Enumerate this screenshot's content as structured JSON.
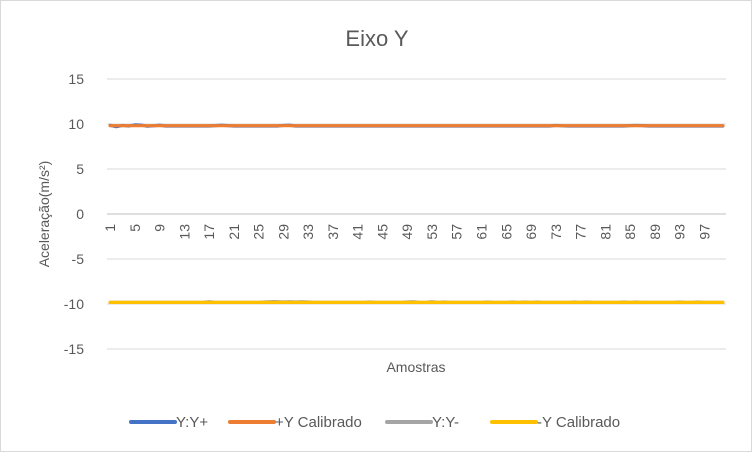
{
  "chart_data": {
    "type": "line",
    "title": "Eixo Y",
    "xlabel": "Amostras",
    "ylabel": "Aceleração(m/s²)",
    "ylim": [
      -15,
      15
    ],
    "yticks": [
      15,
      10,
      5,
      0,
      -5,
      -10,
      -15
    ],
    "x_tick_labels": [
      "1",
      "5",
      "9",
      "13",
      "17",
      "21",
      "25",
      "29",
      "33",
      "37",
      "41",
      "45",
      "49",
      "53",
      "57",
      "61",
      "65",
      "69",
      "73",
      "77",
      "81",
      "85",
      "89",
      "93",
      "97"
    ],
    "grid": true,
    "legend_position": "bottom",
    "series": [
      {
        "name": "Y:Y+",
        "color": "#4472c4",
        "base": 9.78,
        "values": [
          9.85,
          9.7,
          9.84,
          9.78,
          9.9,
          9.88,
          9.76,
          9.8,
          9.86,
          9.78,
          9.78,
          9.78,
          9.78,
          9.78,
          9.78,
          9.78,
          9.78,
          9.82,
          9.86,
          9.82,
          9.78,
          9.78,
          9.78,
          9.78,
          9.78,
          9.78,
          9.78,
          9.78,
          9.84,
          9.86,
          9.78,
          9.78,
          9.78,
          9.78,
          9.78,
          9.78,
          9.78,
          9.78,
          9.78,
          9.78,
          9.78,
          9.78,
          9.78,
          9.78,
          9.78,
          9.78,
          9.78,
          9.78,
          9.78,
          9.78,
          9.78,
          9.78,
          9.78,
          9.78,
          9.78,
          9.78,
          9.78,
          9.78,
          9.78,
          9.78,
          9.78,
          9.78,
          9.78,
          9.78,
          9.78,
          9.78,
          9.78,
          9.78,
          9.78,
          9.78,
          9.78,
          9.78,
          9.84,
          9.8,
          9.78,
          9.78,
          9.78,
          9.78,
          9.78,
          9.78,
          9.78,
          9.78,
          9.78,
          9.78,
          9.82,
          9.84,
          9.82,
          9.78,
          9.78,
          9.78,
          9.78,
          9.78,
          9.78,
          9.78,
          9.78,
          9.78,
          9.78,
          9.78,
          9.78,
          9.78
        ]
      },
      {
        "name": "+Y Calibrado",
        "color": "#ed7d31",
        "base": 9.81,
        "values": []
      },
      {
        "name": "Y:Y-",
        "color": "#a5a5a5",
        "base": -9.82,
        "values": [
          -9.82,
          -9.82,
          -9.82,
          -9.82,
          -9.82,
          -9.82,
          -9.82,
          -9.82,
          -9.82,
          -9.82,
          -9.82,
          -9.82,
          -9.82,
          -9.82,
          -9.82,
          -9.82,
          -9.74,
          -9.82,
          -9.82,
          -9.82,
          -9.82,
          -9.82,
          -9.82,
          -9.82,
          -9.82,
          -9.78,
          -9.74,
          -9.74,
          -9.78,
          -9.74,
          -9.78,
          -9.74,
          -9.78,
          -9.82,
          -9.82,
          -9.82,
          -9.82,
          -9.82,
          -9.82,
          -9.82,
          -9.82,
          -9.82,
          -9.78,
          -9.82,
          -9.82,
          -9.82,
          -9.82,
          -9.82,
          -9.78,
          -9.74,
          -9.82,
          -9.82,
          -9.74,
          -9.82,
          -9.78,
          -9.82,
          -9.82,
          -9.82,
          -9.82,
          -9.82,
          -9.82,
          -9.78,
          -9.82,
          -9.82,
          -9.82,
          -9.78,
          -9.82,
          -9.78,
          -9.82,
          -9.78,
          -9.82,
          -9.82,
          -9.82,
          -9.82,
          -9.82,
          -9.78,
          -9.82,
          -9.78,
          -9.82,
          -9.82,
          -9.82,
          -9.82,
          -9.82,
          -9.78,
          -9.82,
          -9.78,
          -9.82,
          -9.82,
          -9.82,
          -9.82,
          -9.82,
          -9.82,
          -9.78,
          -9.82,
          -9.82,
          -9.78,
          -9.82,
          -9.82,
          -9.82,
          -9.82
        ]
      },
      {
        "name": "-Y Calibrado",
        "color": "#ffc000",
        "base": -9.82,
        "values": []
      }
    ]
  }
}
